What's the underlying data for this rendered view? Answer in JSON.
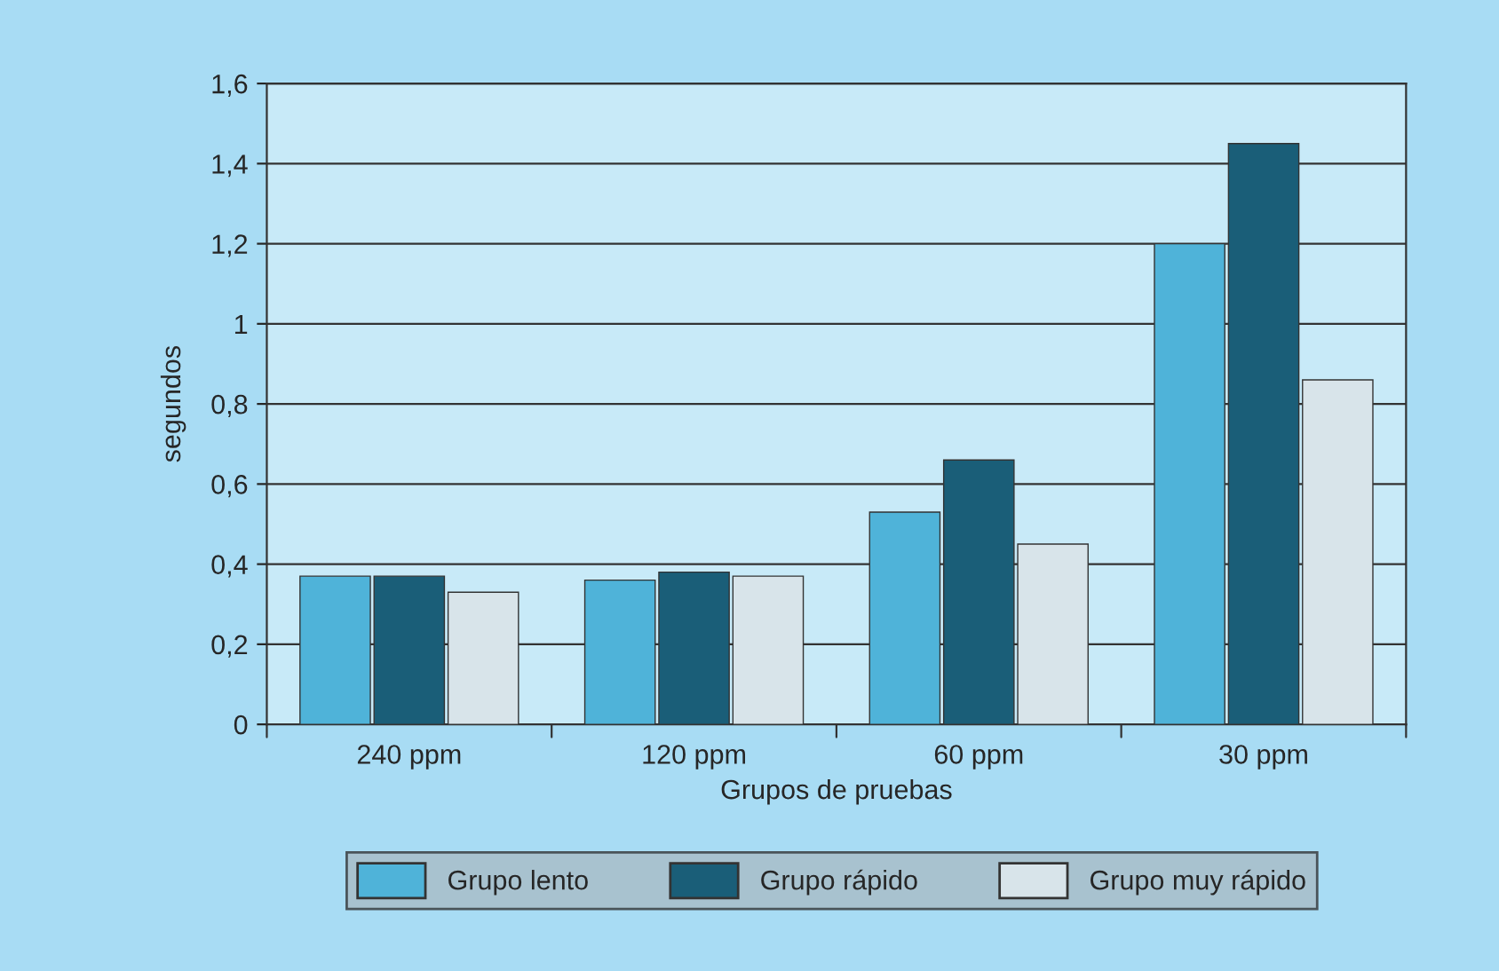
{
  "chart_data": {
    "type": "bar",
    "xlabel": "Grupos de pruebas",
    "ylabel": "segundos",
    "categories": [
      "240 ppm",
      "120 ppm",
      "60 ppm",
      "30 ppm"
    ],
    "series": [
      {
        "name": "Grupo lento",
        "color": "#4fb3d9",
        "values": [
          0.37,
          0.36,
          0.53,
          1.2
        ]
      },
      {
        "name": "Grupo rápido",
        "color": "#1a5e78",
        "values": [
          0.37,
          0.38,
          0.66,
          1.45
        ]
      },
      {
        "name": "Grupo muy rápido",
        "color": "#d8e4ea",
        "values": [
          0.33,
          0.37,
          0.45,
          0.86
        ]
      }
    ],
    "ylim": [
      0,
      1.6
    ],
    "yticks": [
      0,
      {
        "value": 0.2,
        "label": "0,2"
      },
      {
        "value": 0.4,
        "label": "0,4"
      },
      {
        "value": 0.6,
        "label": "0,6"
      },
      {
        "value": 0.8,
        "label": "0,8"
      },
      1,
      {
        "value": 1.2,
        "label": "1,2"
      },
      {
        "value": 1.4,
        "label": "1,4"
      },
      {
        "value": 1.6,
        "label": "1,6"
      }
    ],
    "grid": "y",
    "legend": "bottom"
  }
}
